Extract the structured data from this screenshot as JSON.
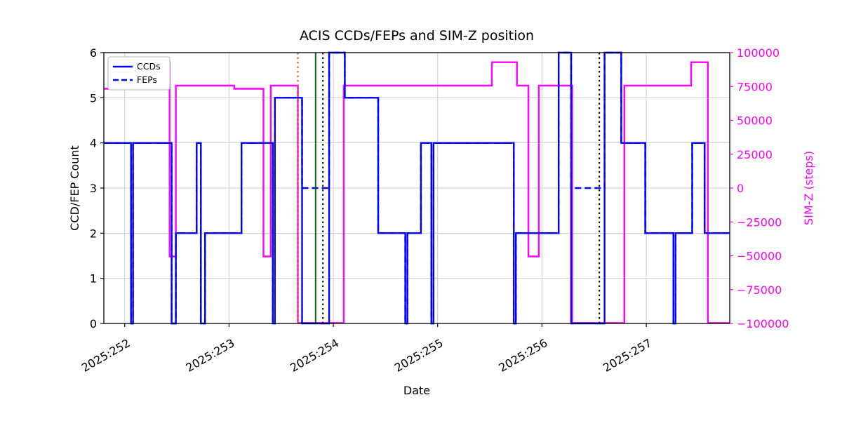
{
  "chart_data": {
    "type": "line",
    "title": "ACIS CCDs/FEPs and SIM-Z position",
    "xlabel": "Date",
    "step_mode": "post",
    "xlim": [
      251.8,
      257.8
    ],
    "x_ticks": {
      "values": [
        252,
        253,
        254,
        255,
        256,
        257
      ],
      "labels": [
        "2025:252",
        "2025:253",
        "2025:254",
        "2025:255",
        "2025:256",
        "2025:257"
      ]
    },
    "left_axis": {
      "label": "CCD/FEP Count",
      "range": [
        0,
        6
      ],
      "tick_values": [
        0,
        1,
        2,
        3,
        4,
        5,
        6
      ],
      "tick_labels": [
        "0",
        "1",
        "2",
        "3",
        "4",
        "5",
        "6"
      ],
      "color": "#000000"
    },
    "right_axis": {
      "label": "SIM-Z (steps)",
      "range": [
        -100000,
        100000
      ],
      "tick_values": [
        100000,
        75000,
        50000,
        25000,
        0,
        -25000,
        -50000,
        -75000,
        -100000
      ],
      "tick_labels": [
        "100000",
        "75000",
        "50000",
        "25000",
        "0",
        "−25000",
        "−50000",
        "−75000",
        "−100000"
      ],
      "color": "#ff00ff"
    },
    "grid": {
      "show": true,
      "color": "#cccccc"
    },
    "legend": {
      "position": "upper-left",
      "items": [
        {
          "label": "CCDs",
          "style": "solid"
        },
        {
          "label": "FEPs",
          "style": "dashed"
        }
      ]
    },
    "series": [
      {
        "name": "SIM-Z",
        "axis": "right",
        "color": "#ff00ff",
        "style": "solid",
        "width": 2.4,
        "steps": [
          [
            251.8,
            73296
          ],
          [
            252.32,
            92904
          ],
          [
            252.43,
            -50505
          ],
          [
            252.49,
            75624
          ],
          [
            253.05,
            73296
          ],
          [
            253.33,
            -50505
          ],
          [
            253.4,
            75624
          ],
          [
            253.66,
            -99612
          ],
          [
            254.1,
            75624
          ],
          [
            255.52,
            92904
          ],
          [
            255.76,
            75624
          ],
          [
            255.87,
            -50505
          ],
          [
            255.97,
            75624
          ],
          [
            256.29,
            -99612
          ],
          [
            256.79,
            75624
          ],
          [
            257.43,
            92904
          ],
          [
            257.59,
            -99612
          ]
        ]
      },
      {
        "name": "CCDs",
        "axis": "left",
        "color": "#0000ff",
        "style": "solid",
        "width": 2.4,
        "steps": [
          [
            251.8,
            4
          ],
          [
            252.06,
            0
          ],
          [
            252.08,
            4
          ],
          [
            252.45,
            0
          ],
          [
            252.49,
            2
          ],
          [
            252.69,
            4
          ],
          [
            252.73,
            0
          ],
          [
            252.77,
            2
          ],
          [
            253.12,
            4
          ],
          [
            253.42,
            0
          ],
          [
            253.44,
            5
          ],
          [
            253.7,
            0
          ],
          [
            253.96,
            6
          ],
          [
            254.11,
            5
          ],
          [
            254.43,
            2
          ],
          [
            254.69,
            0
          ],
          [
            254.71,
            2
          ],
          [
            254.84,
            4
          ],
          [
            254.94,
            0
          ],
          [
            254.96,
            4
          ],
          [
            255.73,
            0
          ],
          [
            255.75,
            2
          ],
          [
            256.16,
            6
          ],
          [
            256.28,
            0
          ],
          [
            256.6,
            6
          ],
          [
            256.76,
            4
          ],
          [
            256.99,
            2
          ],
          [
            257.26,
            0
          ],
          [
            257.28,
            2
          ],
          [
            257.44,
            4
          ],
          [
            257.56,
            2
          ]
        ]
      },
      {
        "name": "FEPs",
        "axis": "left",
        "color": "#0000ff",
        "style": "dashed",
        "width": 2.4,
        "steps": [
          [
            251.8,
            4
          ],
          [
            252.06,
            0
          ],
          [
            252.08,
            4
          ],
          [
            252.45,
            0
          ],
          [
            252.49,
            2
          ],
          [
            252.69,
            4
          ],
          [
            252.73,
            0
          ],
          [
            252.77,
            2
          ],
          [
            253.12,
            4
          ],
          [
            253.42,
            0
          ],
          [
            253.44,
            5
          ],
          [
            253.7,
            3
          ],
          [
            253.96,
            6
          ],
          [
            254.11,
            5
          ],
          [
            254.43,
            2
          ],
          [
            254.69,
            0
          ],
          [
            254.71,
            2
          ],
          [
            254.84,
            4
          ],
          [
            254.94,
            0
          ],
          [
            254.96,
            4
          ],
          [
            255.73,
            0
          ],
          [
            255.75,
            2
          ],
          [
            256.16,
            6
          ],
          [
            256.28,
            3
          ],
          [
            256.6,
            6
          ],
          [
            256.76,
            4
          ],
          [
            256.99,
            2
          ],
          [
            257.26,
            0
          ],
          [
            257.28,
            2
          ],
          [
            257.44,
            4
          ],
          [
            257.56,
            2
          ]
        ]
      }
    ],
    "vlines": [
      {
        "x": 253.66,
        "color": "#d2601a",
        "style": "dotted",
        "width": 2
      },
      {
        "x": 253.83,
        "color": "#007000",
        "style": "solid",
        "width": 2
      },
      {
        "x": 253.9,
        "color": "#000000",
        "style": "dotted",
        "width": 2
      },
      {
        "x": 256.55,
        "color": "#000000",
        "style": "dotted",
        "width": 2
      }
    ]
  }
}
